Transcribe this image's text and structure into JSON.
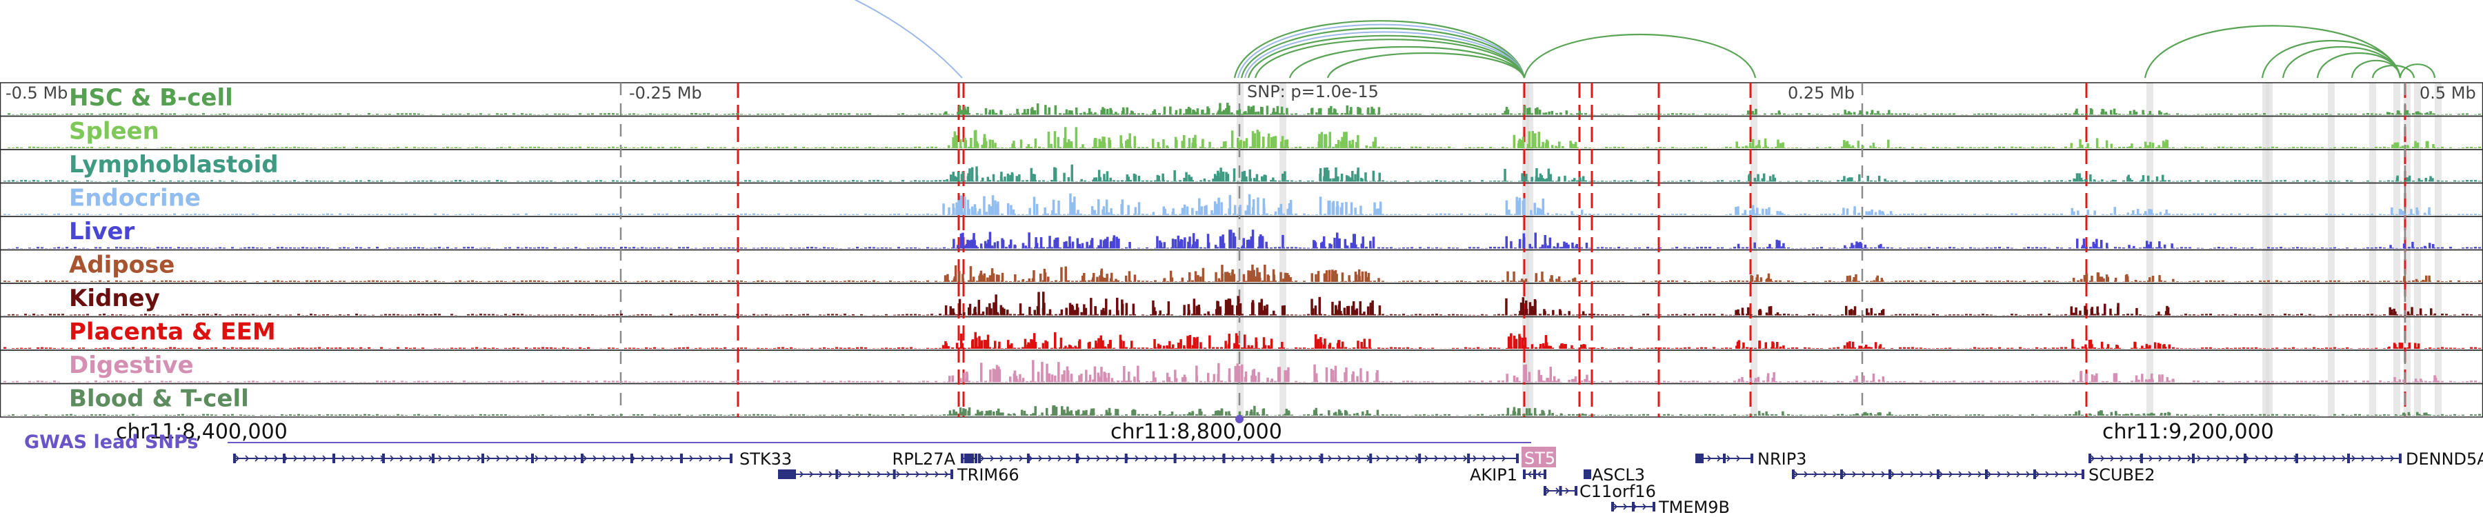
{
  "axis": {
    "tick_labels": [
      "-0.5 Mb",
      "-0.25 Mb",
      "0.25 Mb",
      "0.5 Mb"
    ],
    "snp_label": "SNP: p=1.0e-15",
    "positions": [
      "chr11:8,400,000",
      "chr11:8,800,000",
      "chr11:9,200,000"
    ]
  },
  "tracks": [
    {
      "name": "HSC & B-cell",
      "color": "#55a051"
    },
    {
      "name": "Spleen",
      "color": "#7ec857"
    },
    {
      "name": "Lymphoblastoid",
      "color": "#3f9a83"
    },
    {
      "name": "Endocrine",
      "color": "#92bdf0"
    },
    {
      "name": "Liver",
      "color": "#4945d6"
    },
    {
      "name": "Adipose",
      "color": "#a85430"
    },
    {
      "name": "Kidney",
      "color": "#6a0e0e"
    },
    {
      "name": "Placenta & EEM",
      "color": "#dd1010"
    },
    {
      "name": "Digestive",
      "color": "#d48fb3"
    },
    {
      "name": "Blood & T-cell",
      "color": "#5d8c5e"
    }
  ],
  "gwas_label": "GWAS lead SNPs",
  "genes": [
    {
      "name": "STK33",
      "strand": "-"
    },
    {
      "name": "RPL27A",
      "strand": "+"
    },
    {
      "name": "TRIM66",
      "strand": "-"
    },
    {
      "name": "ST5",
      "strand": "-",
      "highlight": true
    },
    {
      "name": "AKIP1",
      "strand": "+"
    },
    {
      "name": "ASCL3",
      "strand": "-"
    },
    {
      "name": "C11orf16",
      "strand": "-"
    },
    {
      "name": "TMEM9B",
      "strand": "-"
    },
    {
      "name": "NRIP3",
      "strand": "-"
    },
    {
      "name": "SCUBE2",
      "strand": "-"
    },
    {
      "name": "DENND5A",
      "strand": "-"
    }
  ],
  "colors": {
    "arc": "#5aa455",
    "arc_alt": "#9cb8e8",
    "snp_line": "#e01818",
    "gwas": "#6a55c8",
    "gene": "#2b2f80",
    "highlight_gene": "#d48fb3"
  }
}
